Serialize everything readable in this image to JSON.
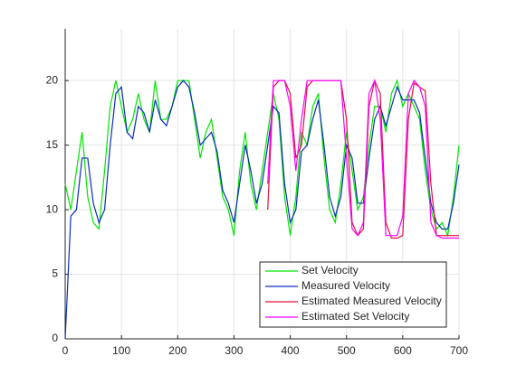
{
  "chart_data": {
    "type": "line",
    "x": [
      0,
      10,
      20,
      30,
      40,
      50,
      60,
      70,
      80,
      90,
      100,
      110,
      120,
      130,
      140,
      150,
      160,
      170,
      180,
      190,
      200,
      210,
      220,
      230,
      240,
      250,
      260,
      270,
      280,
      290,
      300,
      310,
      320,
      330,
      340,
      350,
      360,
      370,
      380,
      390,
      400,
      410,
      420,
      430,
      440,
      450,
      460,
      470,
      480,
      490,
      500,
      510,
      520,
      530,
      540,
      550,
      560,
      570,
      580,
      590,
      600,
      610,
      620,
      630,
      640,
      650,
      660,
      670,
      680,
      690,
      700
    ],
    "series": [
      {
        "name": "Set Velocity",
        "color": "#00e600",
        "values": [
          12,
          10,
          13,
          16,
          11,
          9,
          8.5,
          13,
          18,
          20,
          18,
          16,
          17,
          19,
          17,
          16,
          20,
          17,
          17,
          18,
          20,
          20,
          20,
          17,
          14,
          16,
          17,
          14,
          11,
          10,
          8,
          13,
          16,
          12,
          10,
          13,
          16,
          19,
          17,
          11,
          8,
          11,
          16,
          15,
          18,
          19,
          14,
          10,
          9,
          12,
          16,
          13,
          10,
          11,
          15,
          18,
          18,
          16,
          19,
          20,
          18,
          19,
          18,
          17,
          13,
          10,
          8.5,
          9,
          8,
          11,
          15
        ]
      },
      {
        "name": "Measured Velocity",
        "color": "#0a2dbe",
        "values": [
          0,
          9.5,
          10,
          14,
          14,
          10.5,
          9,
          10,
          15,
          19,
          19.5,
          16,
          15.5,
          18,
          17.5,
          16,
          18.5,
          17,
          16.5,
          18,
          19.5,
          20,
          19.5,
          17.5,
          15,
          15.5,
          16,
          14.5,
          11.5,
          10.5,
          9,
          12,
          15,
          13,
          10.5,
          12,
          15,
          18,
          17.5,
          12,
          9,
          10,
          14.5,
          15,
          17,
          18.5,
          15,
          11,
          9.5,
          11,
          15,
          14,
          10.5,
          10.5,
          14,
          17,
          18,
          16.5,
          18,
          19.5,
          18.5,
          18.5,
          18.5,
          17.5,
          14,
          10.5,
          9,
          8.5,
          8.5,
          10.5,
          13.5
        ]
      },
      {
        "name": "Estimated Measured Velocity",
        "color": "#e0103c",
        "values": [
          null,
          null,
          null,
          null,
          null,
          null,
          null,
          null,
          null,
          null,
          null,
          null,
          null,
          null,
          null,
          null,
          null,
          null,
          null,
          null,
          null,
          null,
          null,
          null,
          null,
          null,
          null,
          null,
          null,
          null,
          null,
          null,
          null,
          null,
          null,
          null,
          10,
          19.5,
          20,
          20,
          19,
          14,
          15,
          19.5,
          20,
          20,
          20,
          20,
          20,
          20,
          17,
          9,
          8,
          8.5,
          18,
          20,
          19,
          9,
          7.8,
          7.8,
          8,
          17,
          19.8,
          19.5,
          19.2,
          12,
          8,
          8,
          8,
          8,
          8
        ]
      },
      {
        "name": "Estimated Set Velocity",
        "color": "#ff00ff",
        "values": [
          null,
          null,
          null,
          null,
          null,
          null,
          null,
          null,
          null,
          null,
          null,
          null,
          null,
          null,
          null,
          null,
          null,
          null,
          null,
          null,
          null,
          null,
          null,
          null,
          null,
          null,
          null,
          null,
          null,
          null,
          null,
          null,
          null,
          null,
          null,
          null,
          12,
          20,
          20,
          20,
          18,
          13,
          17,
          20,
          20,
          20,
          20,
          20,
          20,
          20,
          14,
          8.5,
          8,
          9,
          19,
          20,
          17,
          8,
          8,
          8,
          9.5,
          19,
          20,
          19.5,
          18,
          9,
          8,
          7.8,
          7.8,
          7.8,
          7.8
        ]
      }
    ],
    "xlim": [
      0,
      700
    ],
    "xticks": [
      0,
      100,
      200,
      300,
      400,
      500,
      600,
      700
    ],
    "ylim": [
      0,
      24
    ],
    "yticks": [
      0,
      5,
      10,
      15,
      20
    ],
    "grid": true,
    "legend": "southeast"
  }
}
